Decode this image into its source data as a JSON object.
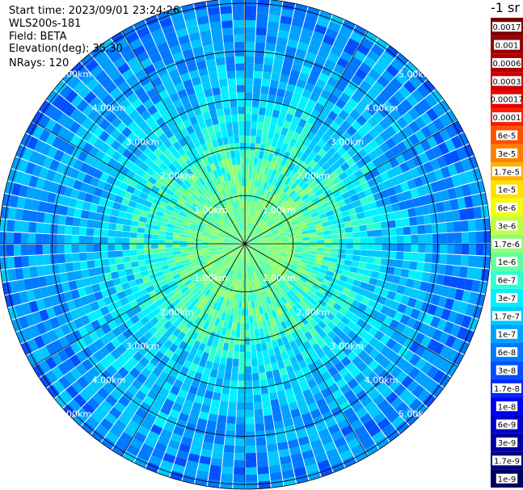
{
  "info": {
    "start_time": "Start time: 2023/09/01 23:24:26",
    "instrument": "WLS200s-181",
    "field": "Field: BETA",
    "elevation": "Elevation(deg): 35.30",
    "nrays": "NRays: 120"
  },
  "colorbar": {
    "unit_label": "-1 sr",
    "ticks": [
      "0.0017",
      "0.001",
      "0.0006",
      "0.0003",
      "0.00017",
      "0.0001",
      "6e-5",
      "3e-5",
      "1.7e-5",
      "1e-5",
      "6e-6",
      "3e-6",
      "1.7e-6",
      "1e-6",
      "6e-7",
      "3e-7",
      "1.7e-7",
      "1e-7",
      "6e-8",
      "3e-8",
      "1.7e-8",
      "1e-8",
      "6e-9",
      "3e-9",
      "1.7e-9",
      "1e-9"
    ],
    "colors": [
      "#7a0000",
      "#960000",
      "#b00000",
      "#cc0000",
      "#e80000",
      "#ff1a00",
      "#ff5000",
      "#ff8000",
      "#ffb000",
      "#ffe000",
      "#f0ff10",
      "#c0ff40",
      "#90ff70",
      "#60ffa0",
      "#30ffd0",
      "#00f0ff",
      "#00c8ff",
      "#00a0ff",
      "#0078ff",
      "#0050ff",
      "#0028ff",
      "#0000f0",
      "#0000c8",
      "#0000a0",
      "#000080",
      "#000060"
    ]
  },
  "chart_data": {
    "type": "heatmap",
    "projection": "polar-ppi",
    "field": "BETA",
    "unit": "sr-1",
    "n_rays": 120,
    "elevation_deg": 35.3,
    "range_rings_km": [
      1,
      2,
      3,
      4,
      5
    ],
    "ring_labels": [
      "1.00km",
      "2.00km",
      "3.00km",
      "4.00km",
      "5.00km"
    ],
    "spokes_deg": [
      0,
      30,
      60,
      90,
      120,
      150,
      180,
      210,
      240,
      270,
      300,
      330
    ],
    "max_range_km": 5.1,
    "value_profile_by_range_km": [
      {
        "range_km": 0.5,
        "beta": 4e-07
      },
      {
        "range_km": 1.0,
        "beta": 3e-07
      },
      {
        "range_km": 2.0,
        "beta": 1e-07
      },
      {
        "range_km": 3.0,
        "beta": 3e-08
      },
      {
        "range_km": 4.0,
        "beta": 1.7e-08
      },
      {
        "range_km": 5.0,
        "beta": 1e-08
      }
    ]
  }
}
